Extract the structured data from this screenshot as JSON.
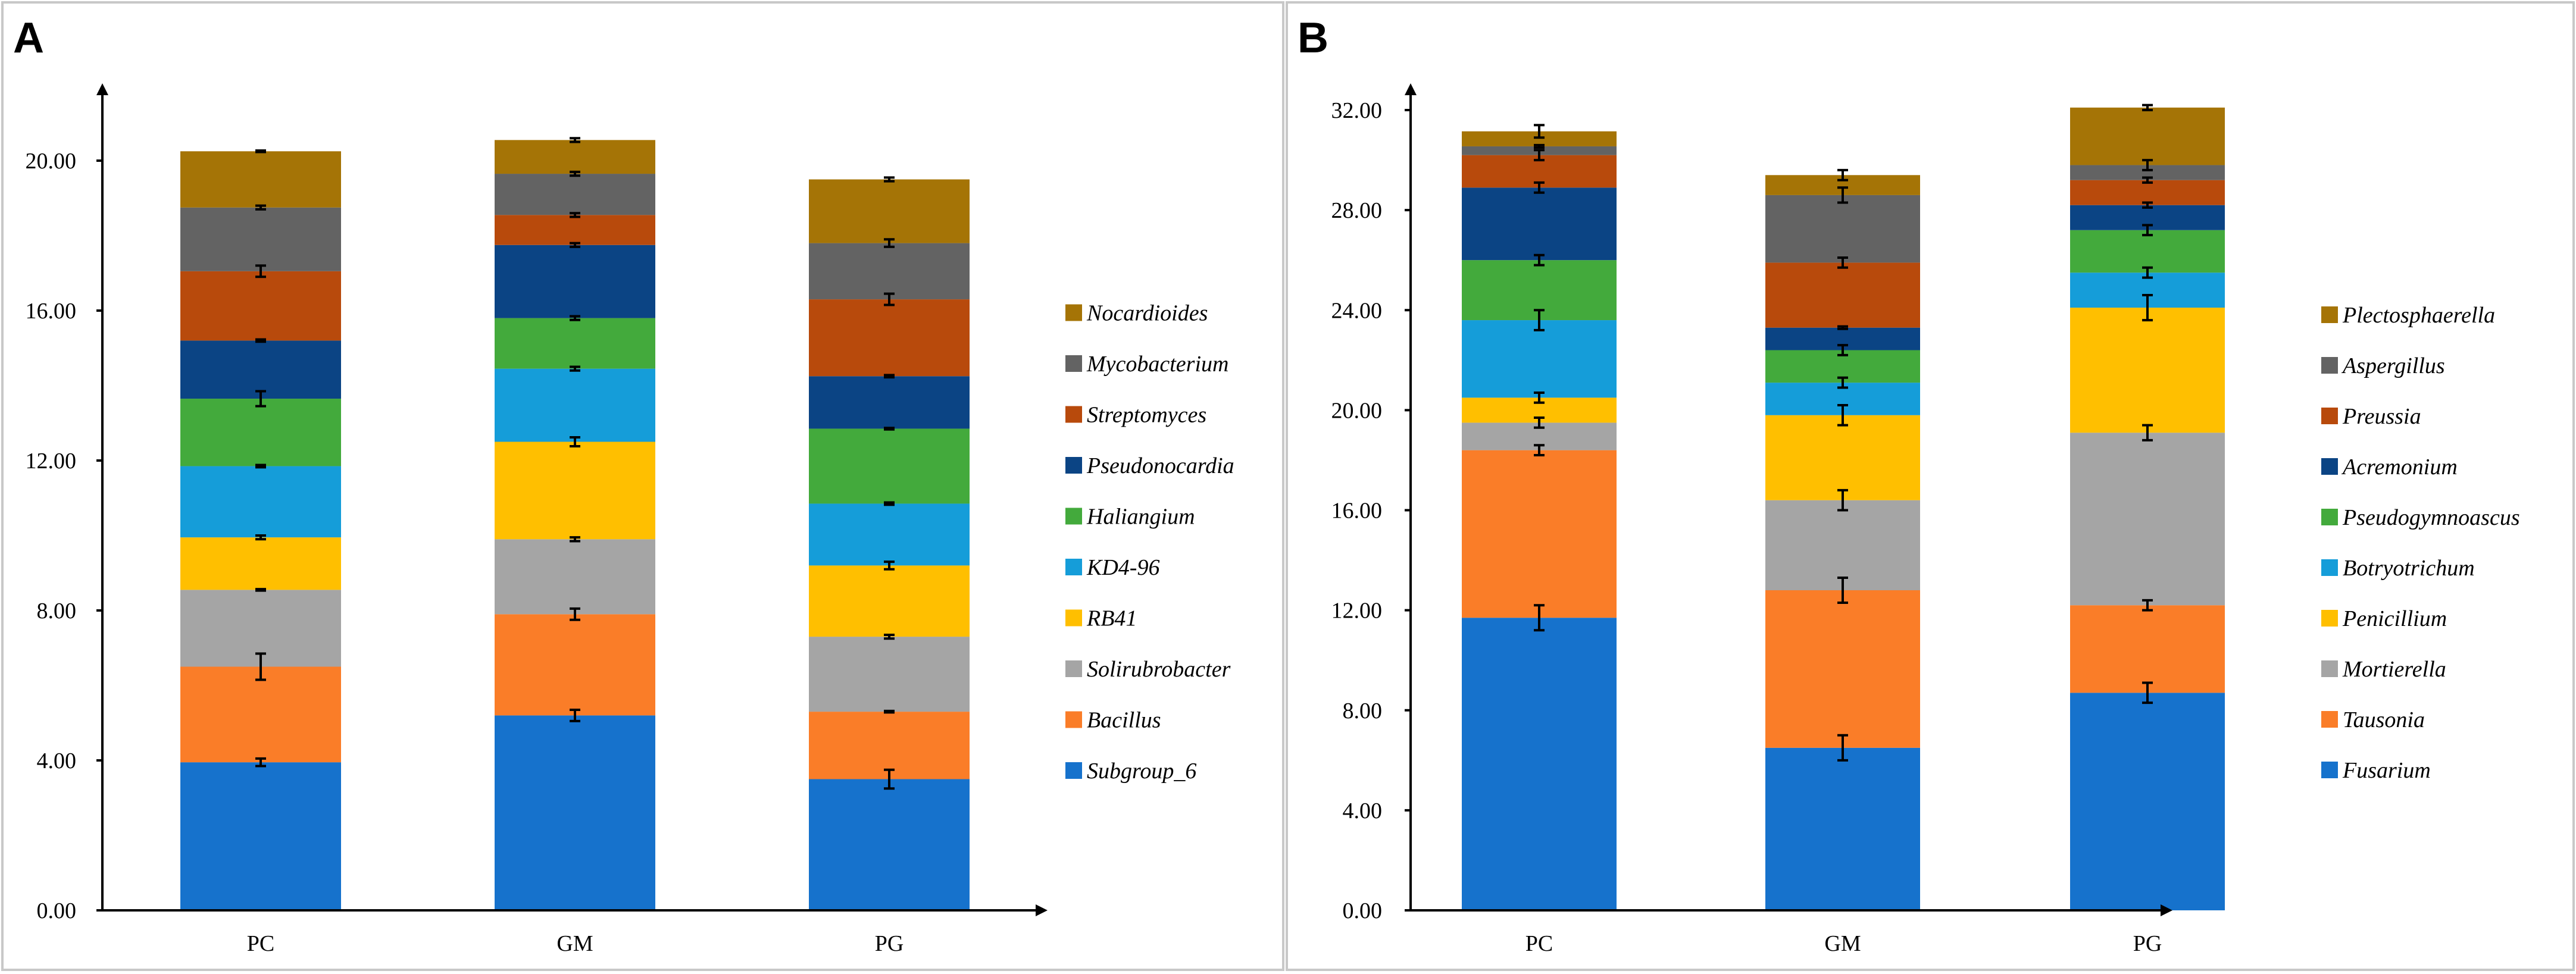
{
  "chart_data": [
    {
      "panel_label": "A",
      "type": "stacked-bar",
      "categories": [
        "PC",
        "GM",
        "PG"
      ],
      "ylim": [
        0,
        22
      ],
      "ytick_labels": [
        "0.00",
        "4.00",
        "8.00",
        "12.00",
        "16.00",
        "20.00"
      ],
      "ytick_values": [
        0,
        4,
        8,
        12,
        16,
        20
      ],
      "legend_position": "right",
      "series": [
        {
          "name": "Subgroup_6",
          "color": "#1672cc",
          "values": [
            3.95,
            5.2,
            3.5
          ],
          "errors": [
            0.1,
            0.15,
            0.25
          ]
        },
        {
          "name": "Bacillus",
          "color": "#fa7d28",
          "values": [
            2.55,
            2.7,
            1.8
          ],
          "errors": [
            0.35,
            0.15,
            0.02
          ]
        },
        {
          "name": "Solirubrobacter",
          "color": "#a5a5a5",
          "values": [
            2.05,
            2.0,
            2.0
          ],
          "errors": [
            0.02,
            0.05,
            0.05
          ]
        },
        {
          "name": "RB41",
          "color": "#ffbf00",
          "values": [
            1.4,
            2.6,
            1.9
          ],
          "errors": [
            0.05,
            0.12,
            0.1
          ]
        },
        {
          "name": "KD4-96",
          "color": "#159dd9",
          "values": [
            1.9,
            1.95,
            1.65
          ],
          "errors": [
            0.03,
            0.05,
            0.03
          ]
        },
        {
          "name": "Haliangium",
          "color": "#43aa3c",
          "values": [
            1.8,
            1.35,
            2.0
          ],
          "errors": [
            0.2,
            0.05,
            0.02
          ]
        },
        {
          "name": "Pseudonocardia",
          "color": "#0b4484",
          "values": [
            1.55,
            1.95,
            1.4
          ],
          "errors": [
            0.03,
            0.05,
            0.03
          ]
        },
        {
          "name": "Streptomyces",
          "color": "#b84a0c",
          "values": [
            1.85,
            0.8,
            2.05
          ],
          "errors": [
            0.15,
            0.05,
            0.15
          ]
        },
        {
          "name": "Mycobacterium",
          "color": "#636363",
          "values": [
            1.7,
            1.1,
            1.5
          ],
          "errors": [
            0.05,
            0.05,
            0.1
          ]
        },
        {
          "name": "Nocardioides",
          "color": "#a57406",
          "values": [
            1.5,
            0.9,
            1.7
          ],
          "errors": [
            0.02,
            0.05,
            0.05
          ]
        }
      ]
    },
    {
      "panel_label": "B",
      "type": "stacked-bar",
      "categories": [
        "PC",
        "GM",
        "PG"
      ],
      "ylim": [
        0,
        33
      ],
      "ytick_labels": [
        "0.00",
        "4.00",
        "8.00",
        "12.00",
        "16.00",
        "20.00",
        "24.00",
        "28.00",
        "32.00"
      ],
      "ytick_values": [
        0,
        4,
        8,
        12,
        16,
        20,
        24,
        28,
        32
      ],
      "legend_position": "right",
      "series": [
        {
          "name": "Fusarium",
          "color": "#1672cc",
          "values": [
            11.7,
            6.5,
            8.7
          ],
          "errors": [
            0.5,
            0.5,
            0.4
          ]
        },
        {
          "name": "Tausonia",
          "color": "#fa7d28",
          "values": [
            6.7,
            6.3,
            3.5
          ],
          "errors": [
            0.2,
            0.5,
            0.2
          ]
        },
        {
          "name": "Mortierella",
          "color": "#a5a5a5",
          "values": [
            1.1,
            3.6,
            6.9
          ],
          "errors": [
            0.2,
            0.4,
            0.3
          ]
        },
        {
          "name": "Penicillium",
          "color": "#ffbf00",
          "values": [
            1.0,
            3.4,
            5.0
          ],
          "errors": [
            0.2,
            0.4,
            0.5
          ]
        },
        {
          "name": "Botryotrichum",
          "color": "#159dd9",
          "values": [
            3.1,
            1.3,
            1.4
          ],
          "errors": [
            0.4,
            0.2,
            0.2
          ]
        },
        {
          "name": "Pseudogymnoascus",
          "color": "#43aa3c",
          "values": [
            2.4,
            1.3,
            1.7
          ],
          "errors": [
            0.2,
            0.2,
            0.2
          ]
        },
        {
          "name": "Acremonium",
          "color": "#0b4484",
          "values": [
            2.9,
            0.9,
            1.0
          ],
          "errors": [
            0.2,
            0.05,
            0.1
          ]
        },
        {
          "name": "Preussia",
          "color": "#b84a0c",
          "values": [
            1.3,
            2.6,
            1.0
          ],
          "errors": [
            0.2,
            0.2,
            0.1
          ]
        },
        {
          "name": "Aspergillus",
          "color": "#636363",
          "values": [
            0.35,
            2.7,
            0.6
          ],
          "errors": [
            0.05,
            0.3,
            0.2
          ]
        },
        {
          "name": "Plectosphaerella",
          "color": "#a57406",
          "values": [
            0.6,
            0.8,
            2.3
          ],
          "errors": [
            0.25,
            0.2,
            0.1
          ]
        }
      ]
    }
  ]
}
